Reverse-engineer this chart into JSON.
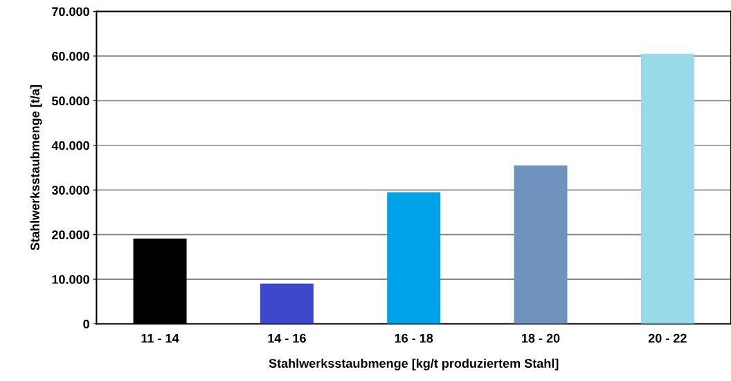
{
  "chart_data": {
    "type": "bar",
    "xlabel": "Stahlwerksstaubmenge [kg/t produziertem Stahl]",
    "ylabel": "Stahlwerksstaubmenge [t/a]",
    "categories": [
      "11 - 14",
      "14 - 16",
      "16 - 18",
      "18 - 20",
      "20 - 22"
    ],
    "values": [
      19100,
      9000,
      29500,
      35500,
      60500
    ],
    "colors": [
      "#000000",
      "#3f48cc",
      "#00a2e8",
      "#7092be",
      "#99d9ea"
    ],
    "ylim": [
      0,
      70000
    ],
    "yticks": [
      {
        "value": 0,
        "label": "0"
      },
      {
        "value": 10000,
        "label": "10.000"
      },
      {
        "value": 20000,
        "label": "20.000"
      },
      {
        "value": 30000,
        "label": "30.000"
      },
      {
        "value": 40000,
        "label": "40.000"
      },
      {
        "value": 50000,
        "label": "50.000"
      },
      {
        "value": 60000,
        "label": "60.000"
      },
      {
        "value": 70000,
        "label": "70.000"
      }
    ],
    "grid": "y",
    "legend": false
  }
}
